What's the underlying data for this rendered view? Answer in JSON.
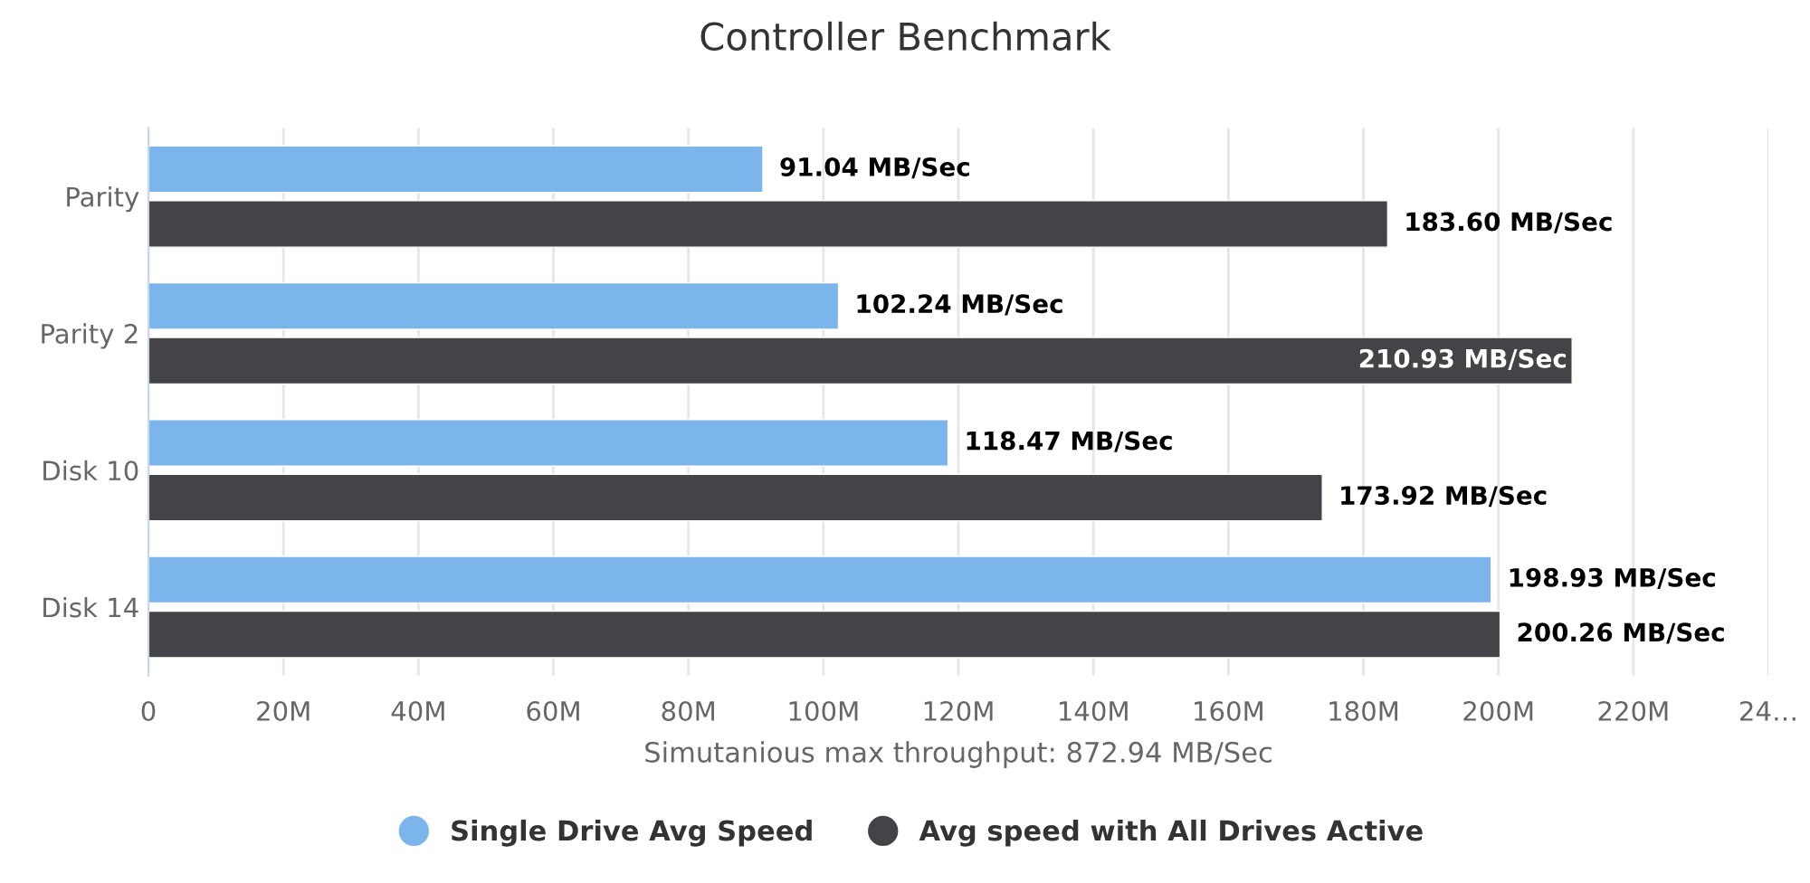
{
  "chart_data": {
    "type": "bar",
    "orientation": "horizontal",
    "title": "Controller Benchmark",
    "xlabel": "Simutanious max throughput: 872.94 MB/Sec",
    "categories": [
      "Parity",
      "Parity 2",
      "Disk 10",
      "Disk 14"
    ],
    "series": [
      {
        "name": "Single Drive Avg Speed",
        "color": "#7cb5ec",
        "values": [
          91.04,
          102.24,
          118.47,
          198.93
        ],
        "value_labels": [
          "91.04 MB/Sec",
          "102.24 MB/Sec",
          "118.47 MB/Sec",
          "198.93 MB/Sec"
        ]
      },
      {
        "name": "Avg speed with All Drives Active",
        "color": "#434348",
        "values": [
          183.6,
          210.93,
          173.92,
          200.26
        ],
        "value_labels": [
          "183.60 MB/Sec",
          "210.93 MB/Sec",
          "173.92 MB/Sec",
          "200.26 MB/Sec"
        ]
      }
    ],
    "xlim": [
      0,
      240
    ],
    "xticks": [
      0,
      {
        "value": 20,
        "label": "20M"
      },
      {
        "value": 40,
        "label": "40M"
      },
      {
        "value": 60,
        "label": "60M"
      },
      {
        "value": 80,
        "label": "80M"
      },
      {
        "value": 100,
        "label": "100M"
      },
      {
        "value": 120,
        "label": "120M"
      },
      {
        "value": 140,
        "label": "140M"
      },
      {
        "value": 160,
        "label": "160M"
      },
      {
        "value": 180,
        "label": "180M"
      },
      {
        "value": 200,
        "label": "200M"
      },
      {
        "value": 220,
        "label": "220M"
      },
      {
        "value": 240,
        "label": "24…"
      }
    ],
    "grid": "x",
    "legend": "bottom"
  }
}
